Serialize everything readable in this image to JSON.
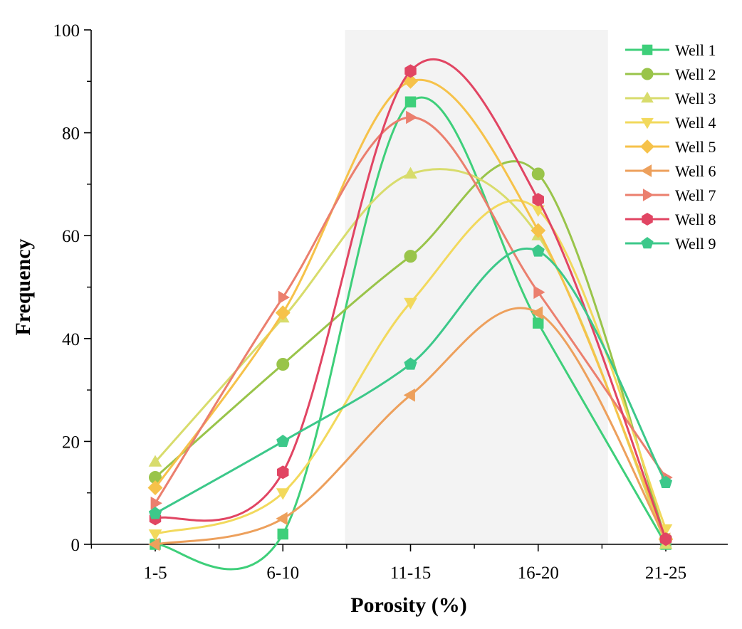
{
  "chart_data": {
    "type": "line",
    "title": "",
    "xlabel": "Porosity (%)",
    "ylabel": "Frequency",
    "categories": [
      "1-5",
      "6-10",
      "11-15",
      "16-20",
      "21-25"
    ],
    "ylim": [
      0,
      100
    ],
    "yticks": [
      "0",
      "20",
      "40",
      "60",
      "80",
      "100"
    ],
    "legend_position": "top-right",
    "highlight_band": {
      "from_category": "11-15",
      "to_category": "16-20",
      "color": "#f3f3f3"
    },
    "series": [
      {
        "name": "Well 1",
        "marker": "square",
        "color": "#3ecf7a",
        "values": [
          0,
          2,
          86,
          43,
          0
        ]
      },
      {
        "name": "Well 2",
        "marker": "circle",
        "color": "#99c44a",
        "values": [
          13,
          35,
          56,
          72,
          1
        ]
      },
      {
        "name": "Well 3",
        "marker": "triangle-up",
        "color": "#d8dc6c",
        "values": [
          16,
          44,
          72,
          60,
          0
        ]
      },
      {
        "name": "Well 4",
        "marker": "triangle-down",
        "color": "#f2d95c",
        "values": [
          2,
          10,
          47,
          65,
          3
        ]
      },
      {
        "name": "Well 5",
        "marker": "diamond",
        "color": "#f6c24a",
        "values": [
          11,
          45,
          90,
          61,
          1
        ]
      },
      {
        "name": "Well 6",
        "marker": "triangle-left",
        "color": "#eda05c",
        "values": [
          0,
          5,
          29,
          45,
          1
        ]
      },
      {
        "name": "Well 7",
        "marker": "triangle-right",
        "color": "#eb7f6e",
        "values": [
          8,
          48,
          83,
          49,
          13
        ]
      },
      {
        "name": "Well 8",
        "marker": "hexagon",
        "color": "#e14563",
        "values": [
          5,
          14,
          92,
          67,
          1
        ]
      },
      {
        "name": "Well 9",
        "marker": "pentagon",
        "color": "#3cc88a",
        "values": [
          6,
          20,
          35,
          57,
          12
        ]
      }
    ]
  }
}
